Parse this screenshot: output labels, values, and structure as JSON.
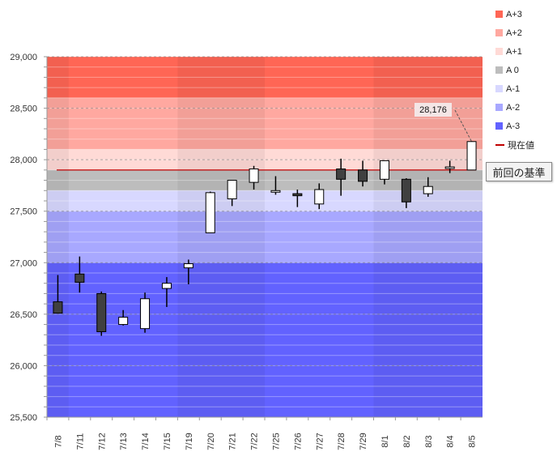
{
  "chart_data": {
    "type": "candlestick",
    "ylim": [
      25500,
      29000
    ],
    "yticks": [
      25500,
      26000,
      26500,
      27000,
      27500,
      28000,
      28500,
      29000
    ],
    "ytick_labels": [
      "25,500",
      "26,000",
      "26,500",
      "27,000",
      "27,500",
      "28,000",
      "28,500",
      "29,000"
    ],
    "categories": [
      "7/8",
      "7/11",
      "7/12",
      "7/13",
      "7/14",
      "7/15",
      "7/19",
      "7/20",
      "7/21",
      "7/22",
      "7/25",
      "7/26",
      "7/27",
      "7/28",
      "7/29",
      "8/1",
      "8/2",
      "8/3",
      "8/4",
      "8/5"
    ],
    "candles": [
      {
        "open": 26620,
        "high": 26880,
        "low": 26510,
        "close": 26510
      },
      {
        "open": 26890,
        "high": 27060,
        "low": 26710,
        "close": 26810
      },
      {
        "open": 26700,
        "high": 26720,
        "low": 26290,
        "close": 26330
      },
      {
        "open": 26400,
        "high": 26540,
        "low": 26390,
        "close": 26470
      },
      {
        "open": 26360,
        "high": 26710,
        "low": 26320,
        "close": 26650
      },
      {
        "open": 26750,
        "high": 26860,
        "low": 26570,
        "close": 26800
      },
      {
        "open": 26950,
        "high": 27030,
        "low": 26790,
        "close": 26990
      },
      {
        "open": 27290,
        "high": 27690,
        "low": 27290,
        "close": 27680
      },
      {
        "open": 27620,
        "high": 27800,
        "low": 27550,
        "close": 27800
      },
      {
        "open": 27780,
        "high": 27940,
        "low": 27710,
        "close": 27910
      },
      {
        "open": 27690,
        "high": 27840,
        "low": 27660,
        "close": 27700
      },
      {
        "open": 27670,
        "high": 27710,
        "low": 27540,
        "close": 27650
      },
      {
        "open": 27570,
        "high": 27770,
        "low": 27520,
        "close": 27710
      },
      {
        "open": 27910,
        "high": 28010,
        "low": 27650,
        "close": 27810
      },
      {
        "open": 27900,
        "high": 27990,
        "low": 27740,
        "close": 27790
      },
      {
        "open": 27810,
        "high": 27990,
        "low": 27760,
        "close": 27990
      },
      {
        "open": 27810,
        "high": 27820,
        "low": 27530,
        "close": 27590
      },
      {
        "open": 27670,
        "high": 27830,
        "low": 27640,
        "close": 27740
      },
      {
        "open": 27920,
        "high": 27990,
        "low": 27870,
        "close": 27930
      },
      {
        "open": 27900,
        "high": 28180,
        "low": 27900,
        "close": 28176
      }
    ],
    "bands": [
      {
        "name": "A+3",
        "from": 28600,
        "to": 29000,
        "color": "#ff6655"
      },
      {
        "name": "A+2",
        "from": 28100,
        "to": 28600,
        "color": "#ffa8a0"
      },
      {
        "name": "A+1",
        "from": 27900,
        "to": 28100,
        "color": "#ffdad6"
      },
      {
        "name": "A 0",
        "from": 27700,
        "to": 27900,
        "color": "#bdbdbd"
      },
      {
        "name": "A-1",
        "from": 27500,
        "to": 27700,
        "color": "#d8d8ff"
      },
      {
        "name": "A-2",
        "from": 27000,
        "to": 27500,
        "color": "#a8a8ff"
      },
      {
        "name": "A-3",
        "from": 25500,
        "to": 27000,
        "color": "#6262ff"
      }
    ],
    "reference_line": {
      "name": "現在値",
      "value": 27900,
      "color": "#c00000"
    },
    "reference_label": "前回の基準",
    "last_price_label": "28,176",
    "bull_color": "#ffffff",
    "bear_color": "#404040"
  }
}
